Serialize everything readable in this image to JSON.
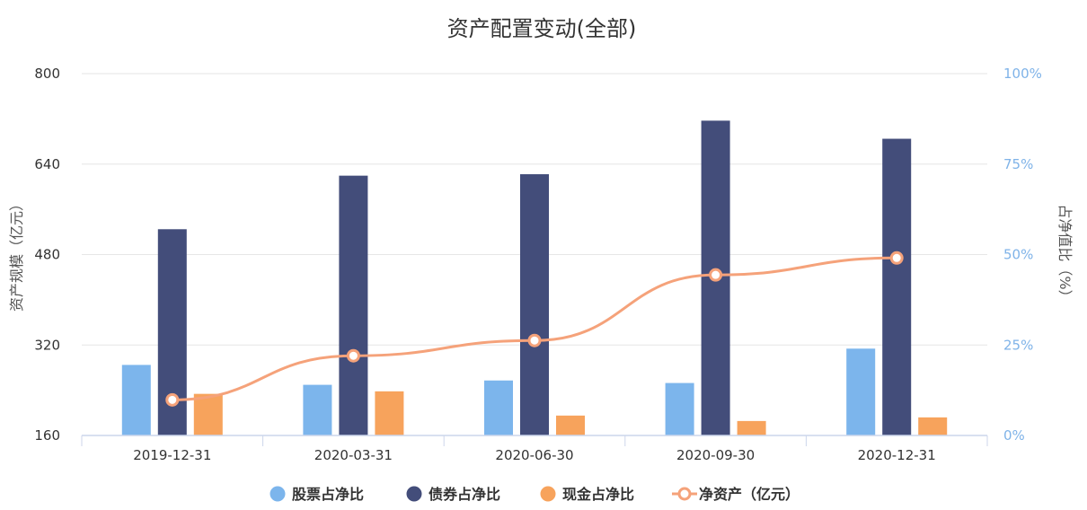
{
  "chart_data": {
    "type": "bar",
    "title": "资产配置变动(全部)",
    "categories": [
      "2019-12-31",
      "2020-03-31",
      "2020-06-30",
      "2020-09-30",
      "2020-12-31"
    ],
    "y_left": {
      "label": "资产规模（亿元）",
      "ylim": [
        160,
        800
      ],
      "ticks": [
        "160",
        "320",
        "480",
        "640",
        "800"
      ]
    },
    "y_right": {
      "label": "占净值比（%）",
      "ylim": [
        0,
        100
      ],
      "ticks": [
        "0%",
        "25%",
        "50%",
        "75%",
        "100%"
      ]
    },
    "series": [
      {
        "name": "股票占净比",
        "type": "bar",
        "axis": "right",
        "color": "#7cb5ec",
        "values": [
          19.5,
          14.0,
          15.2,
          14.5,
          24.0
        ]
      },
      {
        "name": "债券占净比",
        "type": "bar",
        "axis": "right",
        "color": "#434d7a",
        "values": [
          57.0,
          71.8,
          72.2,
          87.0,
          82.0
        ]
      },
      {
        "name": "现金占净比",
        "type": "bar",
        "axis": "right",
        "color": "#f7a35c",
        "values": [
          11.5,
          12.2,
          5.5,
          4.0,
          5.0
        ]
      },
      {
        "name": "净资产（亿元）",
        "type": "line",
        "axis": "left",
        "color": "#f5a27a",
        "values": [
          223,
          301,
          328,
          444,
          474
        ]
      }
    ],
    "grid": true,
    "legend_position": "bottom"
  }
}
